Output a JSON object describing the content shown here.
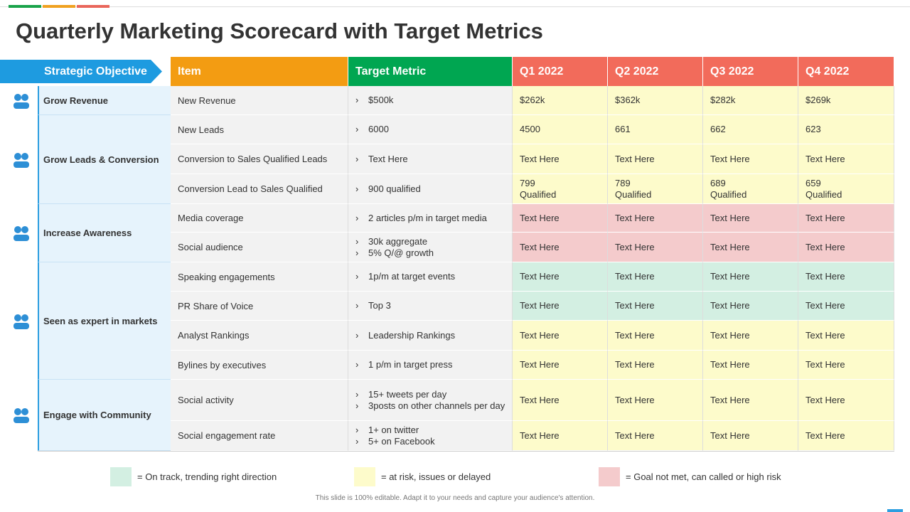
{
  "title": "Quarterly Marketing Scorecard with Target Metrics",
  "table": {
    "headers": [
      "Strategic Objective",
      "Item",
      "Target Metric",
      "Q1 2022",
      "Q2 2022",
      "Q3 2022",
      "Q4 2022"
    ],
    "objectives": [
      {
        "label": "Grow Revenue",
        "rows": [
          {
            "item": "New Revenue",
            "target": [
              "$500k"
            ],
            "quarters": [
              "$262k",
              "$362k",
              "$282k",
              "$269k"
            ],
            "color": "#fdfbcb"
          }
        ]
      },
      {
        "label": "Grow Leads & Conversion",
        "rows": [
          {
            "item": "New Leads",
            "target": [
              "6000"
            ],
            "quarters": [
              "4500",
              "661",
              "662",
              "623"
            ],
            "color": "#fdfbcb"
          },
          {
            "item": "Conversion  to Sales Qualified Leads",
            "target": [
              "Text Here"
            ],
            "quarters": [
              "Text Here",
              "Text Here",
              "Text Here",
              "Text Here"
            ],
            "color": "#fdfbcb"
          },
          {
            "item": "Conversion  Lead to Sales Qualified",
            "target": [
              "900 qualified"
            ],
            "quarters": [
              "799\nQualified",
              "789\nQualified",
              "689\nQualified",
              "659\nQualified"
            ],
            "color": "#fdfbcb"
          }
        ]
      },
      {
        "label": "Increase Awareness",
        "rows": [
          {
            "item": "Media coverage",
            "target": [
              "2 articles p/m in target media"
            ],
            "quarters": [
              "Text Here",
              "Text Here",
              "Text Here",
              "Text Here"
            ],
            "color": "#f4cbcc"
          },
          {
            "item": "Social audience",
            "target": [
              "30k aggregate",
              "5% Q/@ growth"
            ],
            "quarters": [
              "Text Here",
              "Text Here",
              "Text Here",
              "Text Here"
            ],
            "color": "#f4cbcc"
          }
        ]
      },
      {
        "label": "Seen as expert in markets",
        "rows": [
          {
            "item": "Speaking engagements",
            "target": [
              "1p/m at target events"
            ],
            "quarters": [
              "Text Here",
              "Text Here",
              "Text Here",
              "Text Here"
            ],
            "color": "#d3efe2"
          },
          {
            "item": "PR Share of Voice",
            "target": [
              "Top 3"
            ],
            "quarters": [
              "Text Here",
              "Text Here",
              "Text Here",
              "Text Here"
            ],
            "color": "#d3efe2"
          },
          {
            "item": "Analyst Rankings",
            "target": [
              "Leadership Rankings"
            ],
            "quarters": [
              "Text Here",
              "Text Here",
              "Text Here",
              "Text Here"
            ],
            "color": "#fdfbcb"
          },
          {
            "item": "Bylines by executives",
            "target": [
              "1 p/m in target press"
            ],
            "quarters": [
              "Text Here",
              "Text Here",
              "Text Here",
              "Text Here"
            ],
            "color": "#fdfbcb"
          }
        ]
      },
      {
        "label": "Engage with Community",
        "rows": [
          {
            "item": "Social activity",
            "target": [
              "15+ tweets per day",
              "3posts on other channels per day"
            ],
            "quarters": [
              "Text Here",
              "Text Here",
              "Text Here",
              "Text Here"
            ],
            "color": "#fdfbcb"
          },
          {
            "item": "Social engagement rate",
            "target": [
              "1+ on twitter",
              "5+ on Facebook"
            ],
            "quarters": [
              "Text Here",
              "Text Here",
              "Text Here",
              "Text Here"
            ],
            "color": "#fdfbcb"
          }
        ]
      }
    ]
  },
  "legend": [
    {
      "label": "= On track, trending right direction",
      "color": "#d3efe2"
    },
    {
      "label": "= at risk, issues or delayed",
      "color": "#fdfbcb"
    },
    {
      "label": "= Goal not met, can called or high risk",
      "color": "#f4cbcc"
    }
  ],
  "footer": "This slide is 100% editable. Adapt it to your needs and capture your audience's attention."
}
